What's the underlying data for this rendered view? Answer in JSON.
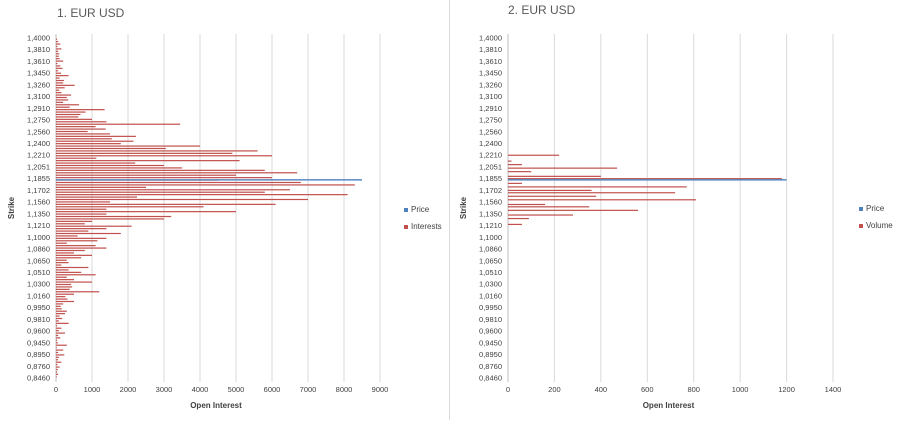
{
  "chart_data": [
    {
      "type": "bar",
      "orientation": "horizontal",
      "title": "1. EUR USD",
      "xlabel": "Open Interest",
      "ylabel": "Strike",
      "xlim": [
        0,
        9000
      ],
      "x_ticks": [
        0,
        1000,
        2000,
        3000,
        4000,
        5000,
        6000,
        7000,
        8000,
        9000
      ],
      "y_tick_labels": [
        "1,4000",
        "1,3810",
        "1,3610",
        "1,3450",
        "1,3260",
        "1,3100",
        "1,2910",
        "1,2750",
        "1,2560",
        "1,2400",
        "1,2210",
        "1,2051",
        "1,1855",
        "1,1702",
        "1,1560",
        "1,1350",
        "1,1210",
        "1,1000",
        "1,0860",
        "1,0650",
        "1,0510",
        "1,0300",
        "1,0160",
        "0,9950",
        "0,9810",
        "0,9600",
        "0,9450",
        "0,8950",
        "0,8760",
        "0,8460"
      ],
      "gridlines": "vertical",
      "legend_position": "right",
      "colors": {
        "price": "#4f81bd",
        "interests": "#c0504d"
      },
      "series": [
        {
          "name": "Price",
          "price_strike_index": 12.1,
          "value": 8500
        },
        {
          "name": "Interests",
          "values": [
            30,
            60,
            120,
            40,
            150,
            60,
            90,
            80,
            100,
            200,
            40,
            120,
            180,
            60,
            140,
            350,
            100,
            220,
            200,
            520,
            240,
            90,
            150,
            420,
            300,
            340,
            200,
            640,
            380,
            1350,
            820,
            680,
            620,
            1000,
            1400,
            3450,
            1100,
            1380,
            880,
            1500,
            2220,
            1550,
            2150,
            1800,
            4000,
            3050,
            5600,
            4900,
            6000,
            1120,
            5100,
            2200,
            3000,
            3500,
            5800,
            6700,
            5000,
            6000,
            4500,
            6800,
            8300,
            2500,
            6500,
            5800,
            8100,
            2250,
            7000,
            1500,
            6100,
            4100,
            1400,
            5000,
            1400,
            3200,
            3000,
            1000,
            800,
            2100,
            1400,
            900,
            1800,
            600,
            1400,
            1150,
            300,
            1100,
            1400,
            800,
            500,
            1000,
            700,
            300,
            350,
            150,
            900,
            350,
            700,
            1100,
            300,
            500,
            1000,
            420,
            450,
            380,
            1200,
            500,
            260,
            320,
            500,
            200,
            130,
            160,
            300,
            250,
            100,
            170,
            80,
            350,
            30,
            150,
            80,
            250,
            60,
            120,
            30,
            50,
            300,
            20,
            200,
            60,
            230,
            80,
            60,
            150,
            40,
            100,
            50,
            30,
            60,
            20
          ]
        }
      ]
    },
    {
      "type": "bar",
      "orientation": "horizontal",
      "title": "2. EUR USD",
      "xlabel": "Open Interest",
      "ylabel": "Strike",
      "xlim": [
        0,
        1400
      ],
      "x_ticks": [
        0,
        200,
        400,
        600,
        800,
        1000,
        1200,
        1400
      ],
      "y_tick_labels": [
        "1,4000",
        "1,3810",
        "1,3610",
        "1,3450",
        "1,3260",
        "1,3100",
        "1,2910",
        "1,2750",
        "1,2560",
        "1,2400",
        "1,2210",
        "1,2051",
        "1,1855",
        "1,1702",
        "1,1560",
        "1,1350",
        "1,1210",
        "1,1000",
        "1,0860",
        "1,0650",
        "1,0510",
        "1,0300",
        "1,0160",
        "0,9950",
        "0,9810",
        "0,9600",
        "0,9450",
        "0,8950",
        "0,8760",
        "0,8460"
      ],
      "gridlines": "vertical",
      "legend_position": "right",
      "colors": {
        "price": "#4f81bd",
        "volume": "#c0504d"
      },
      "series": [
        {
          "name": "Price",
          "price_strike_index": 12.1,
          "value": 1200
        },
        {
          "name": "Volume",
          "strike_indices": [
            10.0,
            10.5,
            10.8,
            11.1,
            11.4,
            11.8,
            12.0,
            12.4,
            12.7,
            13.0,
            13.2,
            13.5,
            13.8,
            14.2,
            14.4,
            14.7,
            15.1,
            15.4,
            15.9
          ],
          "values": [
            220,
            15,
            60,
            470,
            100,
            400,
            1180,
            60,
            770,
            360,
            720,
            380,
            810,
            160,
            350,
            560,
            280,
            90,
            60
          ]
        }
      ]
    }
  ]
}
